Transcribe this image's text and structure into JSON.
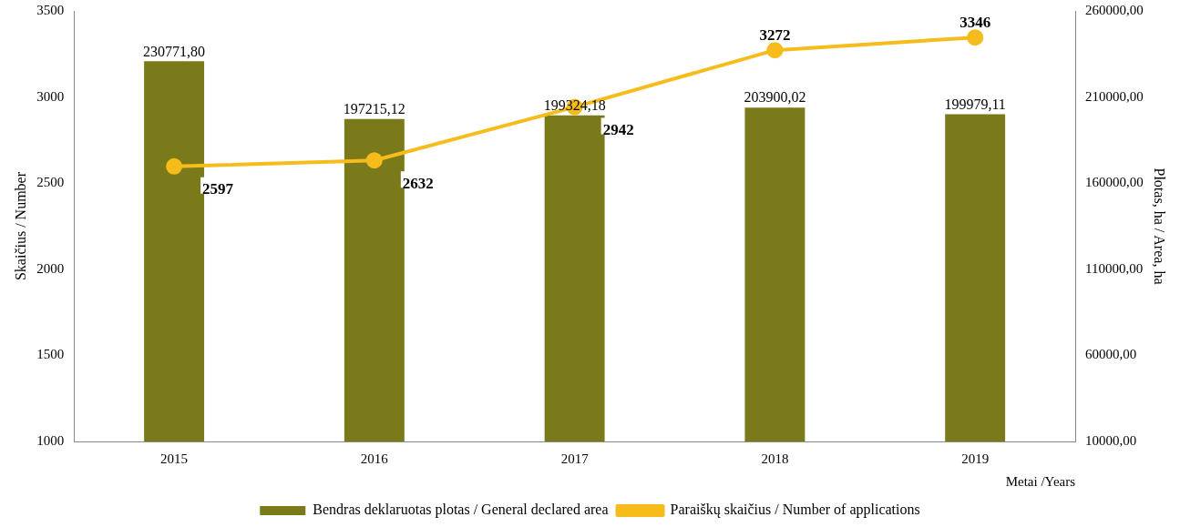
{
  "chart_data": {
    "type": "bar",
    "categories": [
      "2015",
      "2016",
      "2017",
      "2018",
      "2019"
    ],
    "xlabel": "Metai /Years",
    "ylabel": "Skaičius / Number",
    "y2label": "Plotas, ha / Area, ha",
    "series": [
      {
        "name": "Bendras deklaruotas plotas / General declared area",
        "axis": "y2",
        "color": "#7a7a1a",
        "values": [
          230771.8,
          197215.12,
          199324.18,
          203900.02,
          199979.11
        ],
        "value_labels": [
          "230771,80",
          "197215,12",
          "199324,18",
          "203900,02",
          "199979,11"
        ]
      },
      {
        "name": "Paraiškų skaičius / Number of applications",
        "type": "line",
        "axis": "y",
        "color": "#f5bc1c",
        "marker": "circle",
        "values": [
          2597,
          2632,
          2942,
          3272,
          3346
        ],
        "value_labels": [
          "2597",
          "2632",
          "2942",
          "3272",
          "3346"
        ]
      }
    ],
    "ylim": [
      1000,
      3500
    ],
    "yticks": [
      1000,
      1500,
      2000,
      2500,
      3000,
      3500
    ],
    "y2lim": [
      10000,
      260000
    ],
    "y2ticks": [
      {
        "value": 10000,
        "label": "10000,00"
      },
      {
        "value": 60000,
        "label": "60000,00"
      },
      {
        "value": 110000,
        "label": "110000,00"
      },
      {
        "value": 160000,
        "label": "160000,00"
      },
      {
        "value": 210000,
        "label": "210000,00"
      },
      {
        "value": 260000,
        "label": "260000,00"
      }
    ],
    "grid": false,
    "legend": "bottom"
  }
}
